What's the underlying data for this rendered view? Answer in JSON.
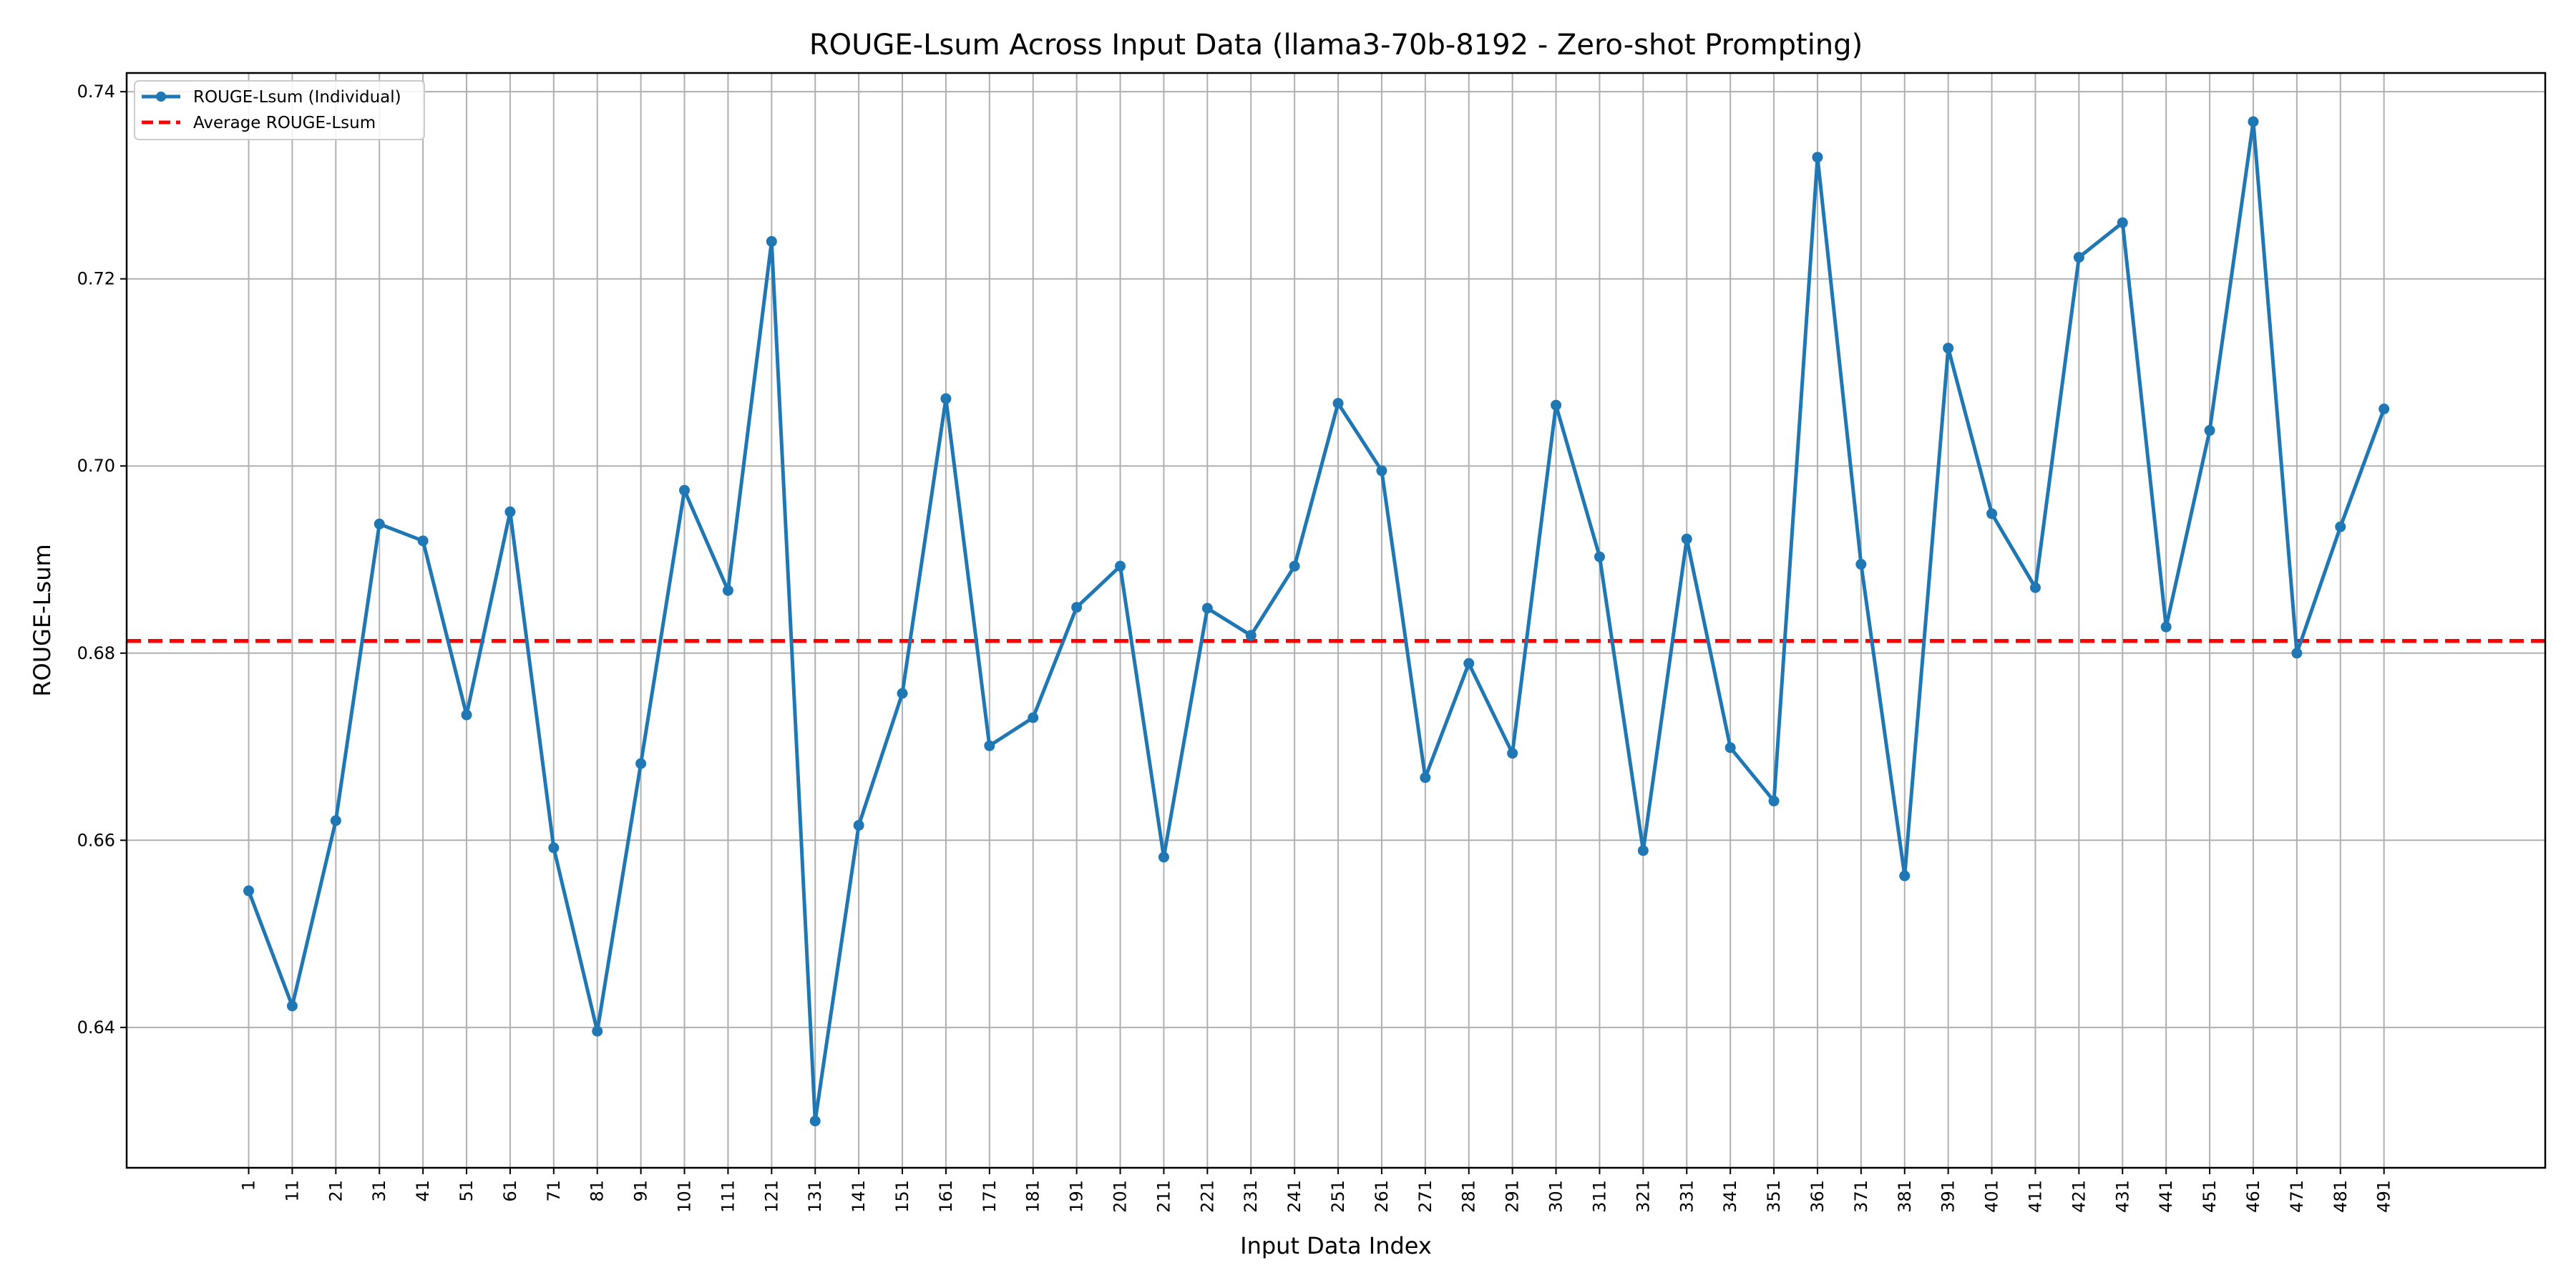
{
  "chart_data": {
    "type": "line",
    "title": "ROUGE-Lsum Across Input Data (llama3-70b-8192 - Zero-shot Prompting)",
    "xlabel": "Input Data Index",
    "ylabel": "ROUGE-Lsum",
    "x": [
      1,
      11,
      21,
      31,
      41,
      51,
      61,
      71,
      81,
      91,
      101,
      111,
      121,
      131,
      141,
      151,
      161,
      171,
      181,
      191,
      201,
      211,
      221,
      231,
      241,
      251,
      261,
      271,
      281,
      291,
      301,
      311,
      321,
      331,
      341,
      351,
      361,
      371,
      381,
      391,
      401,
      411,
      421,
      431,
      441,
      451,
      461,
      471,
      481,
      491
    ],
    "xlim": [
      -27,
      528
    ],
    "ylim": [
      0.625,
      0.742
    ],
    "yticks": [
      0.64,
      0.66,
      0.68,
      0.7,
      0.72,
      0.74
    ],
    "ytick_labels": [
      "0.64",
      "0.66",
      "0.68",
      "0.70",
      "0.72",
      "0.74"
    ],
    "grid": true,
    "legend_position": "top-left",
    "series": [
      {
        "name": "ROUGE-Lsum (Individual)",
        "color": "#1f77b4",
        "style": "solid-with-markers",
        "values": [
          0.6546,
          0.6423,
          0.6621,
          0.6938,
          0.692,
          0.6734,
          0.6951,
          0.6592,
          0.6396,
          0.6682,
          0.6974,
          0.6867,
          0.724,
          0.63,
          0.6616,
          0.6757,
          0.7072,
          0.6701,
          0.6731,
          0.6849,
          0.6893,
          0.6582,
          0.6848,
          0.6819,
          0.6893,
          0.7067,
          0.6995,
          0.6667,
          0.6789,
          0.6693,
          0.7065,
          0.6903,
          0.6589,
          0.6922,
          0.6699,
          0.6642,
          0.733,
          0.6895,
          0.6562,
          0.7126,
          0.6949,
          0.687,
          0.7223,
          0.726,
          0.6828,
          0.7038,
          0.7368,
          0.68,
          0.6935,
          0.7061
        ]
      },
      {
        "name": "Average ROUGE-Lsum",
        "color": "#ff0000",
        "style": "dashed",
        "value": 0.6813
      }
    ]
  }
}
